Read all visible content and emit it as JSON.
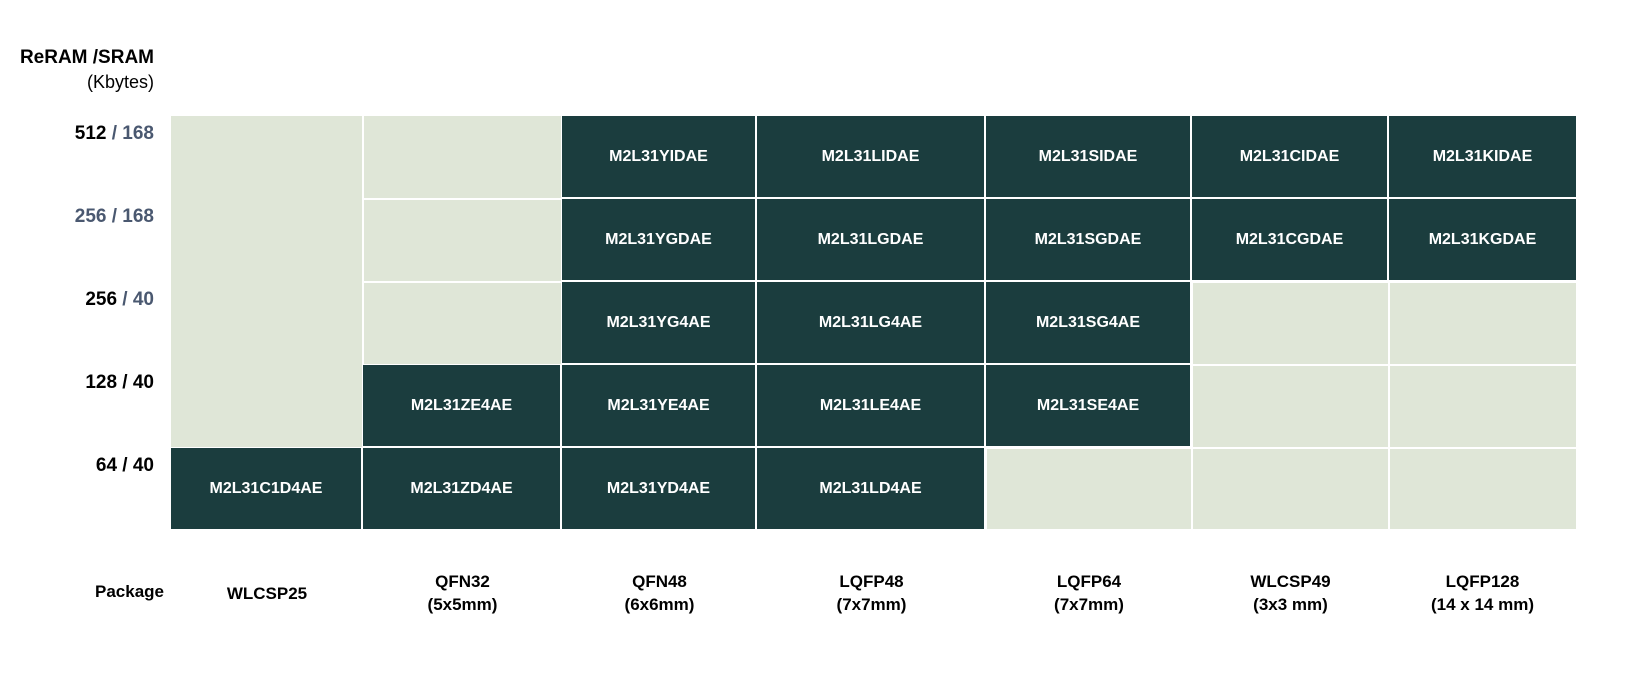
{
  "axis_title": {
    "line1": "ReRAM /SRAM",
    "line2": "(Kbytes)"
  },
  "rows": [
    {
      "reram": "512",
      "sep": " / ",
      "sram": "168",
      "reram_color": "#000000",
      "sram_color": "#4a5870"
    },
    {
      "reram": "256",
      "sep": " / ",
      "sram": "168",
      "reram_color": "#4a5870",
      "sram_color": "#4a5870"
    },
    {
      "reram": "256",
      "sep": " / ",
      "sram": "40",
      "reram_color": "#000000",
      "sram_color": "#4a5870"
    },
    {
      "reram": "128",
      "sep": " / ",
      "sram": "40",
      "reram_color": "#000000",
      "sram_color": "#000000"
    },
    {
      "reram": "64",
      "sep": " / ",
      "sram": "40",
      "reram_color": "#000000",
      "sram_color": "#000000"
    }
  ],
  "package_header": "Package",
  "packages": [
    {
      "name": "WLCSP25",
      "size": ""
    },
    {
      "name": "QFN32",
      "size": "(5x5mm)"
    },
    {
      "name": "QFN48",
      "size": "(6x6mm)"
    },
    {
      "name": "LQFP48",
      "size": "(7x7mm)"
    },
    {
      "name": "LQFP64",
      "size": "(7x7mm)"
    },
    {
      "name": "WLCSP49",
      "size": "(3x3 mm)"
    },
    {
      "name": "LQFP128",
      "size": "(14 x 14 mm)"
    }
  ],
  "cells": [
    [
      "",
      "",
      "M2L31YIDAE",
      "M2L31LIDAE",
      "M2L31SIDAE",
      "M2L31CIDAE",
      "M2L31KIDAE"
    ],
    [
      "",
      "",
      "M2L31YGDAE",
      "M2L31LGDAE",
      "M2L31SGDAE",
      "M2L31CGDAE",
      "M2L31KGDAE"
    ],
    [
      "",
      "",
      "M2L31YG4AE",
      "M2L31LG4AE",
      "M2L31SG4AE",
      "",
      ""
    ],
    [
      "",
      "M2L31ZE4AE",
      "M2L31YE4AE",
      "M2L31LE4AE",
      "M2L31SE4AE",
      "",
      ""
    ],
    [
      "M2L31C1D4AE",
      "M2L31ZD4AE",
      "M2L31YD4AE",
      "M2L31LD4AE",
      "",
      "",
      ""
    ]
  ],
  "colors": {
    "filled_cell": "#1b3d3e",
    "empty_cell": "#dfe6d7",
    "label_slate": "#4a5870"
  }
}
